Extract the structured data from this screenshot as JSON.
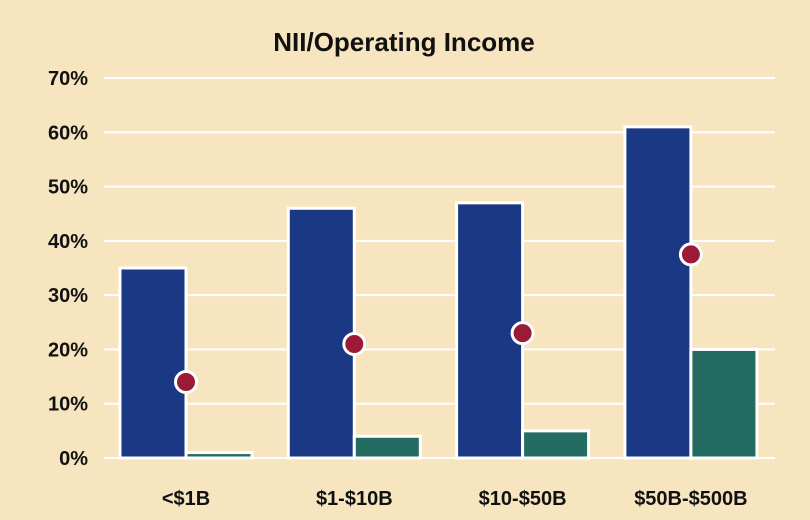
{
  "chart_data": {
    "type": "bar",
    "title": "NII/Operating Income",
    "xlabel": "",
    "ylabel": "",
    "categories": [
      "<$1B",
      "$1-$10B",
      "$10-$50B",
      "$50B-$500B"
    ],
    "series": [
      {
        "values": [
          35,
          46,
          47,
          61
        ],
        "color": "#1a3883",
        "mark": "bar"
      },
      {
        "values": [
          1,
          4,
          5,
          20
        ],
        "color": "#246b62",
        "mark": "bar"
      },
      {
        "values": [
          14,
          21,
          23,
          37.5
        ],
        "color": "#9b1b36",
        "mark": "dot"
      }
    ],
    "ylim": [
      0,
      70
    ],
    "yticks": [
      0,
      10,
      20,
      30,
      40,
      50,
      60,
      70
    ],
    "ytick_labels": [
      "0%",
      "10%",
      "20%",
      "30%",
      "40%",
      "50%",
      "60%",
      "70%"
    ],
    "grid": true,
    "legend": "none",
    "background": "#f6e5bf"
  }
}
